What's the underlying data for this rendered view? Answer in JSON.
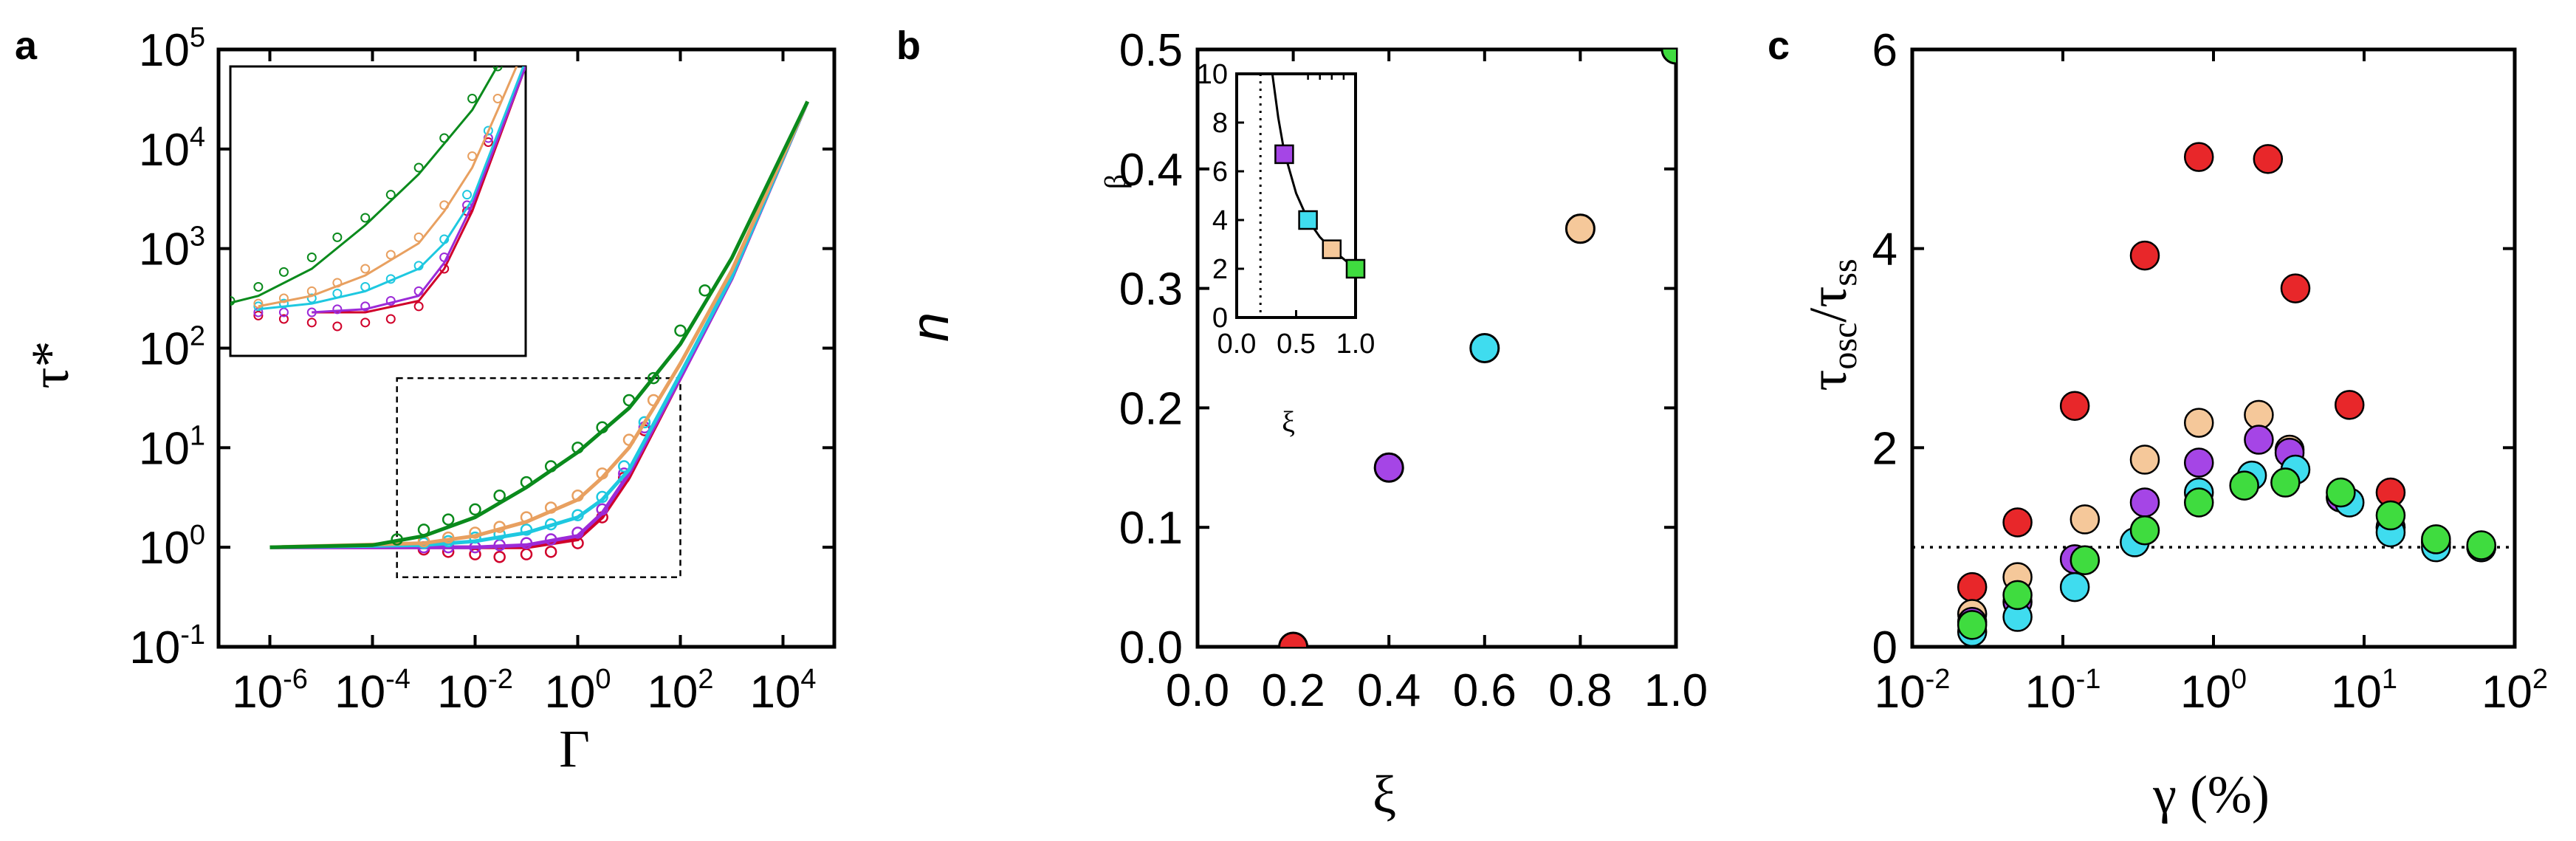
{
  "chart_data": [
    {
      "panel": "a",
      "type": "scatter",
      "panel_label": "a",
      "xlabel": "Γ",
      "ylabel": "τ*",
      "xscale": "log",
      "yscale": "log",
      "xlim": [
        1e-07,
        100000.0
      ],
      "ylim": [
        0.1,
        100000
      ],
      "x_ticks": [
        {
          "v": 1e-06,
          "mant": "10",
          "exp": "-6"
        },
        {
          "v": 0.0001,
          "mant": "10",
          "exp": "-4"
        },
        {
          "v": 0.01,
          "mant": "10",
          "exp": "-2"
        },
        {
          "v": 1,
          "mant": "10",
          "exp": "0"
        },
        {
          "v": 100,
          "mant": "10",
          "exp": "2"
        },
        {
          "v": 10000,
          "mant": "10",
          "exp": "4"
        }
      ],
      "y_ticks": [
        {
          "v": 0.1,
          "mant": "10",
          "exp": "-1"
        },
        {
          "v": 1,
          "mant": "10",
          "exp": "0"
        },
        {
          "v": 10,
          "mant": "10",
          "exp": "1"
        },
        {
          "v": 100,
          "mant": "10",
          "exp": "2"
        },
        {
          "v": 1000,
          "mant": "10",
          "exp": "3"
        },
        {
          "v": 10000,
          "mant": "10",
          "exp": "4"
        },
        {
          "v": 100000,
          "mant": "10",
          "exp": "5"
        }
      ],
      "zoom_box": {
        "x": [
          0.0003,
          100
        ],
        "y": [
          0.5,
          50
        ]
      },
      "series": [
        {
          "color": "#d0002a",
          "fit": [
            [
              1e-06,
              1.0
            ],
            [
              0.01,
              1.0
            ],
            [
              0.1,
              1.0
            ],
            [
              1,
              1.2
            ],
            [
              3,
              2
            ],
            [
              10,
              5
            ],
            [
              100,
              50
            ],
            [
              1000,
              500
            ],
            [
              30000,
              30000
            ]
          ],
          "points": [
            [
              0.001,
              0.95
            ],
            [
              0.003,
              0.9
            ],
            [
              0.01,
              0.85
            ],
            [
              0.03,
              0.8
            ],
            [
              0.1,
              0.85
            ],
            [
              0.3,
              0.9
            ],
            [
              1,
              1.1
            ],
            [
              3,
              2
            ],
            [
              8,
              5
            ],
            [
              20,
              15
            ]
          ]
        },
        {
          "color": "#9c2ad8",
          "fit": [
            [
              1e-06,
              1.0
            ],
            [
              0.01,
              1.0
            ],
            [
              0.1,
              1.05
            ],
            [
              1,
              1.3
            ],
            [
              3,
              2.2
            ],
            [
              10,
              5.5
            ],
            [
              100,
              50
            ],
            [
              1000,
              500
            ],
            [
              30000,
              30000
            ]
          ],
          "points": [
            [
              0.001,
              1.0
            ],
            [
              0.003,
              1.0
            ],
            [
              0.01,
              1.0
            ],
            [
              0.03,
              1.05
            ],
            [
              0.1,
              1.1
            ],
            [
              0.3,
              1.2
            ],
            [
              1,
              1.4
            ],
            [
              3,
              2.4
            ],
            [
              8,
              5.5
            ],
            [
              20,
              16
            ]
          ]
        },
        {
          "color": "#1ec8e0",
          "fit": [
            [
              1e-06,
              1.0
            ],
            [
              0.001,
              1.05
            ],
            [
              0.01,
              1.15
            ],
            [
              0.1,
              1.4
            ],
            [
              1,
              2
            ],
            [
              3,
              3
            ],
            [
              10,
              6
            ],
            [
              100,
              55
            ],
            [
              1000,
              520
            ],
            [
              30000,
              30000
            ]
          ],
          "points": [
            [
              0.001,
              1.1
            ],
            [
              0.003,
              1.15
            ],
            [
              0.01,
              1.25
            ],
            [
              0.03,
              1.35
            ],
            [
              0.1,
              1.5
            ],
            [
              0.3,
              1.7
            ],
            [
              1,
              2.1
            ],
            [
              3,
              3.2
            ],
            [
              8,
              6.5
            ],
            [
              20,
              18
            ]
          ]
        },
        {
          "color": "#e8a060",
          "fit": [
            [
              1e-06,
              1.0
            ],
            [
              0.001,
              1.1
            ],
            [
              0.01,
              1.3
            ],
            [
              0.1,
              1.8
            ],
            [
              1,
              3
            ],
            [
              3,
              5
            ],
            [
              10,
              10
            ],
            [
              30,
              25
            ],
            [
              100,
              70
            ],
            [
              1000,
              600
            ],
            [
              30000,
              30000
            ]
          ],
          "points": [
            [
              0.001,
              1.15
            ],
            [
              0.003,
              1.25
            ],
            [
              0.01,
              1.4
            ],
            [
              0.03,
              1.6
            ],
            [
              0.1,
              2.0
            ],
            [
              0.3,
              2.5
            ],
            [
              1,
              3.3
            ],
            [
              3,
              5.5
            ],
            [
              10,
              12
            ],
            [
              30,
              30
            ]
          ]
        },
        {
          "color": "#0a8a1c",
          "fit": [
            [
              1e-06,
              1.0
            ],
            [
              0.0001,
              1.05
            ],
            [
              0.001,
              1.3
            ],
            [
              0.01,
              2
            ],
            [
              0.1,
              4
            ],
            [
              1,
              9
            ],
            [
              10,
              25
            ],
            [
              100,
              110
            ],
            [
              1000,
              800
            ],
            [
              30000,
              30000
            ]
          ],
          "points": [
            [
              0.0003,
              1.2
            ],
            [
              0.001,
              1.5
            ],
            [
              0.003,
              1.9
            ],
            [
              0.01,
              2.4
            ],
            [
              0.03,
              3.3
            ],
            [
              0.1,
              4.5
            ],
            [
              0.3,
              6.5
            ],
            [
              1,
              10
            ],
            [
              3,
              16
            ],
            [
              10,
              30
            ],
            [
              30,
              50
            ],
            [
              100,
              150
            ],
            [
              300,
              380
            ]
          ]
        }
      ]
    },
    {
      "panel": "b",
      "type": "scatter",
      "panel_label": "b",
      "xlabel": "ξ",
      "ylabel": "n",
      "xlim": [
        0.0,
        1.0
      ],
      "ylim": [
        0.0,
        0.5
      ],
      "x_ticks": [
        "0.0",
        "0.2",
        "0.4",
        "0.6",
        "0.8",
        "1.0"
      ],
      "y_ticks": [
        "0.0",
        "0.1",
        "0.2",
        "0.3",
        "0.4",
        "0.5"
      ],
      "points": [
        {
          "x": 0.2,
          "y": 0.0,
          "color": "#e8272a"
        },
        {
          "x": 0.4,
          "y": 0.15,
          "color": "#a545e6"
        },
        {
          "x": 0.6,
          "y": 0.25,
          "color": "#3fdcef"
        },
        {
          "x": 0.8,
          "y": 0.35,
          "color": "#f5c89a"
        },
        {
          "x": 1.0,
          "y": 0.5,
          "color": "#3fdc3f"
        }
      ],
      "inset": {
        "xlabel": "ξ",
        "ylabel": "β",
        "xlim": [
          0.0,
          1.0
        ],
        "ylim": [
          0,
          10
        ],
        "x_ticks": [
          "0.0",
          "0.5",
          "1.0"
        ],
        "y_ticks": [
          "0",
          "2",
          "4",
          "6",
          "8",
          "10"
        ],
        "vline_x": 0.2,
        "fit_curve": [
          [
            0.3,
            10
          ],
          [
            0.35,
            8.2
          ],
          [
            0.4,
            6.8
          ],
          [
            0.5,
            5.1
          ],
          [
            0.6,
            4.0
          ],
          [
            0.7,
            3.3
          ],
          [
            0.8,
            2.8
          ],
          [
            0.9,
            2.4
          ],
          [
            1.0,
            2.0
          ]
        ],
        "points": [
          {
            "x": 0.4,
            "y": 6.7,
            "color": "#a545e6"
          },
          {
            "x": 0.6,
            "y": 4.0,
            "color": "#3fdcef"
          },
          {
            "x": 0.8,
            "y": 2.8,
            "color": "#f5c89a"
          },
          {
            "x": 1.0,
            "y": 2.0,
            "color": "#3fdc3f"
          }
        ]
      }
    },
    {
      "panel": "c",
      "type": "scatter",
      "panel_label": "c",
      "xlabel": "γ (%)",
      "ylabel": "τosc/τss",
      "xscale": "log",
      "xlim": [
        0.01,
        100
      ],
      "ylim": [
        0,
        6
      ],
      "x_ticks": [
        {
          "v": 0.01,
          "mant": "10",
          "exp": "-2"
        },
        {
          "v": 0.1,
          "mant": "10",
          "exp": "-1"
        },
        {
          "v": 1,
          "mant": "10",
          "exp": "0"
        },
        {
          "v": 10,
          "mant": "10",
          "exp": "1"
        },
        {
          "v": 100,
          "mant": "10",
          "exp": "2"
        }
      ],
      "y_ticks": [
        "0",
        "2",
        "4",
        "6"
      ],
      "reference_line_y": 1,
      "series": [
        {
          "color": "#e8272a",
          "points": [
            [
              0.025,
              0.6
            ],
            [
              0.05,
              1.25
            ],
            [
              0.12,
              2.42
            ],
            [
              0.35,
              3.93
            ],
            [
              0.8,
              4.92
            ],
            [
              2.3,
              4.9
            ],
            [
              3.5,
              3.6
            ],
            [
              8,
              2.43
            ],
            [
              15,
              1.55
            ]
          ]
        },
        {
          "color": "#f5c89a",
          "points": [
            [
              0.025,
              0.33
            ],
            [
              0.05,
              0.7
            ],
            [
              0.14,
              1.28
            ],
            [
              0.35,
              1.88
            ],
            [
              0.8,
              2.25
            ],
            [
              2,
              2.33
            ],
            [
              3.2,
              1.98
            ],
            [
              7,
              1.5
            ],
            [
              15,
              1.2
            ],
            [
              30,
              1.05
            ],
            [
              60,
              1.0
            ]
          ]
        },
        {
          "color": "#a545e6",
          "points": [
            [
              0.025,
              0.25
            ],
            [
              0.05,
              0.45
            ],
            [
              0.12,
              0.88
            ],
            [
              0.35,
              1.45
            ],
            [
              0.8,
              1.85
            ],
            [
              2,
              2.08
            ],
            [
              3.2,
              1.95
            ],
            [
              7,
              1.5
            ],
            [
              15,
              1.2
            ],
            [
              30,
              1.05
            ],
            [
              60,
              1.0
            ]
          ]
        },
        {
          "color": "#3fdcef",
          "points": [
            [
              0.025,
              0.15
            ],
            [
              0.05,
              0.3
            ],
            [
              0.12,
              0.6
            ],
            [
              0.3,
              1.05
            ],
            [
              0.8,
              1.55
            ],
            [
              1.8,
              1.72
            ],
            [
              3.5,
              1.78
            ],
            [
              8,
              1.45
            ],
            [
              15,
              1.15
            ],
            [
              30,
              1.0
            ],
            [
              60,
              1.0
            ]
          ]
        },
        {
          "color": "#3fdc3f",
          "points": [
            [
              0.025,
              0.22
            ],
            [
              0.05,
              0.52
            ],
            [
              0.14,
              0.87
            ],
            [
              0.35,
              1.17
            ],
            [
              0.8,
              1.45
            ],
            [
              1.6,
              1.62
            ],
            [
              3,
              1.65
            ],
            [
              7,
              1.55
            ],
            [
              15,
              1.32
            ],
            [
              30,
              1.08
            ],
            [
              60,
              1.02
            ]
          ]
        }
      ]
    }
  ]
}
